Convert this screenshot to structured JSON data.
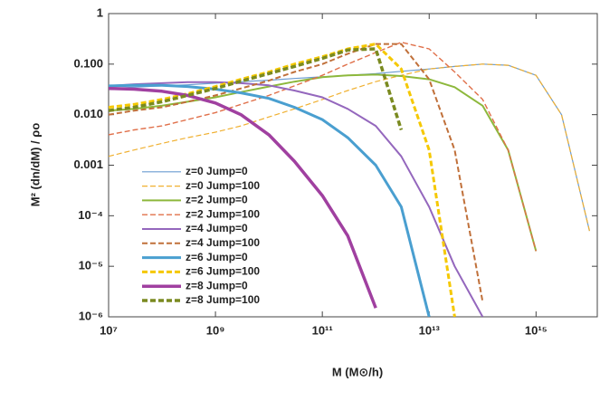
{
  "chart_data": {
    "type": "line",
    "x_label": "M (M⊙/h)",
    "y_label": "M² (dn/dM) / ρo",
    "xscale": "log",
    "yscale": "log",
    "grid": false,
    "legend": "lower left",
    "xlim": [
      10000000,
      14000000000000000
    ],
    "ylim": [
      1e-06,
      1
    ],
    "xticks": [
      {
        "value": 10000000,
        "label": "10⁷"
      },
      {
        "value": 1000000000,
        "label": "10⁹"
      },
      {
        "value": 100000000000,
        "label": "10¹¹"
      },
      {
        "value": 10000000000000,
        "label": "10¹³"
      },
      {
        "value": 1000000000000000,
        "label": "10¹⁵"
      }
    ],
    "yticks": [
      {
        "value": 1e-06,
        "label": "10⁻⁶"
      },
      {
        "value": 1e-05,
        "label": "10⁻⁵"
      },
      {
        "value": 0.0001,
        "label": "10⁻⁴"
      },
      0.001,
      {
        "value": 0.01,
        "label": "0.010"
      },
      {
        "value": 0.1,
        "label": "0.100"
      },
      1
    ],
    "x": [
      10000000,
      30000000,
      100000000,
      300000000,
      1000000000,
      3000000000,
      10000000000,
      30000000000,
      100000000000,
      300000000000,
      1000000000000,
      3000000000000,
      10000000000000,
      30000000000000,
      100000000000000,
      300000000000000,
      1000000000000000,
      3000000000000000,
      10000000000000000
    ],
    "series": [
      {
        "name": "z=0 Jump=0",
        "color": "#6a9bd0",
        "line_width": 1.2,
        "dashed": false,
        "values": [
          0.033,
          0.035,
          0.037,
          0.039,
          0.042,
          0.045,
          0.048,
          0.052,
          0.056,
          0.06,
          0.065,
          0.072,
          0.08,
          0.09,
          0.1,
          0.095,
          0.06,
          0.01,
          5e-05
        ]
      },
      {
        "name": "z=0 Jump=100",
        "color": "#f0b030",
        "line_width": 1.2,
        "dashed": true,
        "values": [
          0.0015,
          0.002,
          0.0027,
          0.0035,
          0.0045,
          0.006,
          0.009,
          0.013,
          0.02,
          0.03,
          0.045,
          0.06,
          0.08,
          0.09,
          0.1,
          0.095,
          0.06,
          0.01,
          5e-05
        ]
      },
      {
        "name": "z=2 Jump=0",
        "color": "#8db83c",
        "line_width": 2,
        "dashed": false,
        "values": [
          0.012,
          0.013,
          0.015,
          0.018,
          0.022,
          0.028,
          0.036,
          0.045,
          0.055,
          0.06,
          0.062,
          0.058,
          0.05,
          0.035,
          0.015,
          0.002,
          2e-05,
          null,
          null
        ]
      },
      {
        "name": "z=2 Jump=100",
        "color": "#e0704a",
        "line_width": 1.4,
        "dashed": true,
        "values": [
          0.004,
          0.005,
          0.006,
          0.008,
          0.011,
          0.016,
          0.024,
          0.037,
          0.06,
          0.1,
          0.17,
          0.27,
          0.2,
          0.07,
          0.02,
          0.002,
          2e-05,
          null,
          null
        ]
      },
      {
        "name": "z=4 Jump=0",
        "color": "#9467bd",
        "line_width": 2,
        "dashed": false,
        "values": [
          0.037,
          0.04,
          0.042,
          0.044,
          0.044,
          0.042,
          0.038,
          0.03,
          0.022,
          0.013,
          0.006,
          0.0015,
          0.00015,
          1e-05,
          1e-06,
          null,
          null,
          null,
          null
        ]
      },
      {
        "name": "z=4 Jump=100",
        "color": "#c0703a",
        "line_width": 2,
        "dashed": true,
        "values": [
          0.01,
          0.012,
          0.014,
          0.018,
          0.024,
          0.033,
          0.047,
          0.07,
          0.1,
          0.16,
          0.25,
          0.25,
          0.05,
          0.002,
          2e-06,
          null,
          null,
          null,
          null
        ]
      },
      {
        "name": "z=6 Jump=0",
        "color": "#4a9fd0",
        "line_width": 3,
        "dashed": false,
        "values": [
          0.037,
          0.038,
          0.038,
          0.036,
          0.032,
          0.027,
          0.021,
          0.014,
          0.008,
          0.0035,
          0.001,
          0.00015,
          1e-06,
          null,
          null,
          null,
          null,
          null,
          null
        ]
      },
      {
        "name": "z=6 Jump=100",
        "color": "#f5c800",
        "line_width": 3,
        "dashed": true,
        "values": [
          0.014,
          0.016,
          0.02,
          0.026,
          0.036,
          0.05,
          0.07,
          0.1,
          0.14,
          0.2,
          0.25,
          0.08,
          0.002,
          1e-06,
          null,
          null,
          null,
          null,
          null
        ]
      },
      {
        "name": "z=8 Jump=0",
        "color": "#a040a0",
        "line_width": 3.5,
        "dashed": false,
        "values": [
          0.033,
          0.032,
          0.029,
          0.024,
          0.017,
          0.01,
          0.004,
          0.0012,
          0.00025,
          4e-05,
          1.5e-06,
          null,
          null,
          null,
          null,
          null,
          null,
          null,
          null
        ]
      },
      {
        "name": "z=8 Jump=100",
        "color": "#7a8a20",
        "line_width": 3.5,
        "dashed": true,
        "values": [
          0.012,
          0.014,
          0.018,
          0.024,
          0.033,
          0.046,
          0.065,
          0.09,
          0.13,
          0.19,
          0.2,
          0.005,
          null,
          null,
          null,
          null,
          null,
          null,
          null
        ]
      }
    ]
  }
}
